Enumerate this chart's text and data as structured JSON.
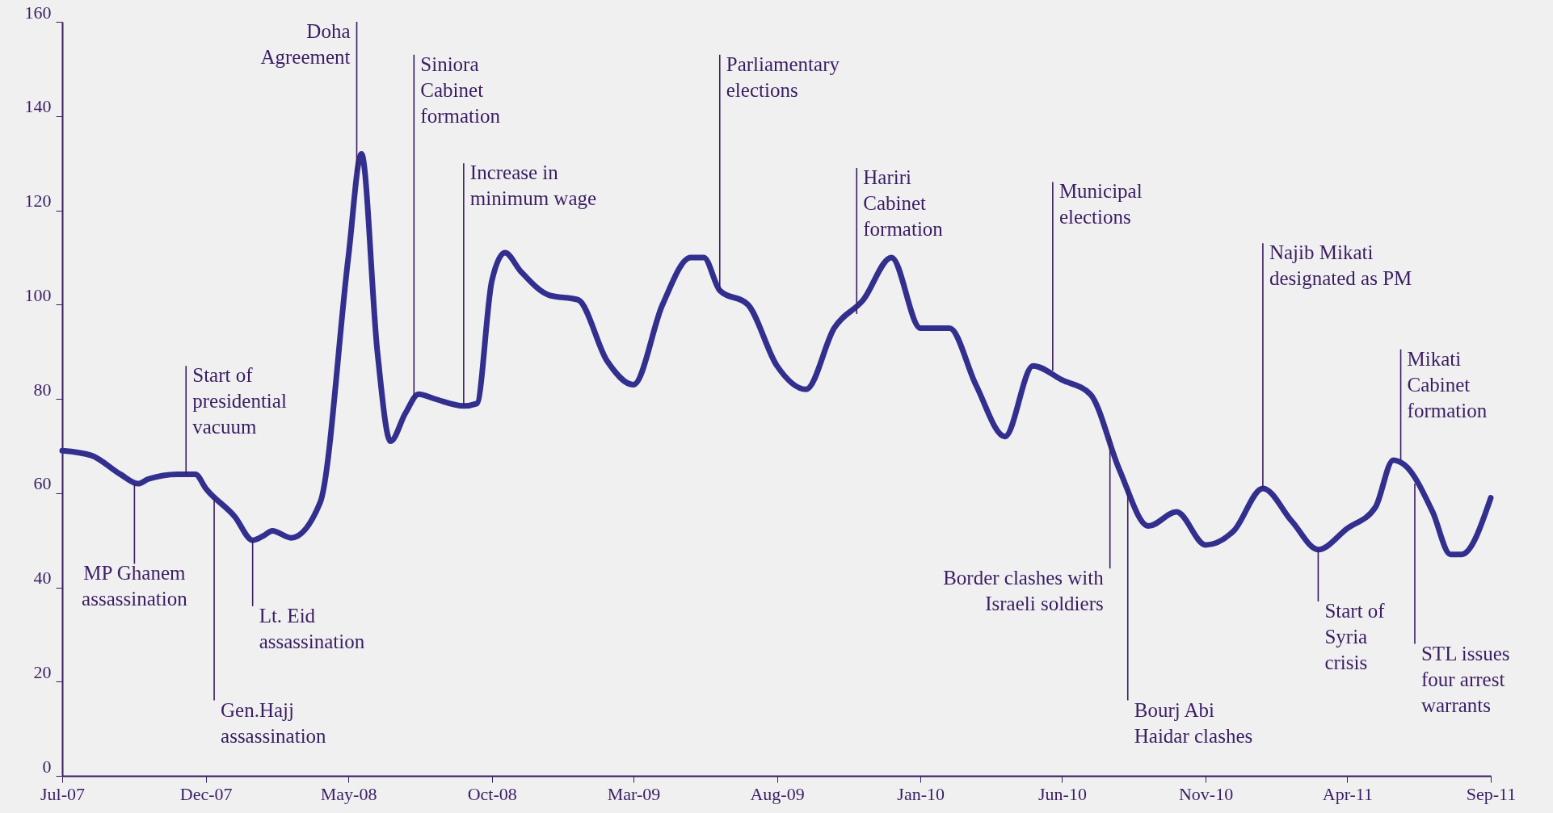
{
  "chart_data": {
    "type": "line",
    "x": [
      "2007-07",
      "2007-08",
      "2007-09",
      "2007-09-20",
      "2007-10",
      "2007-11",
      "2007-11-20",
      "2007-12",
      "2008-01",
      "2008-01-20",
      "2008-02",
      "2008-02-10",
      "2008-03",
      "2008-04",
      "2008-05",
      "2008-05-15",
      "2008-06",
      "2008-06-15",
      "2008-07",
      "2008-07-15",
      "2008-08",
      "2008-09",
      "2008-09-15",
      "2008-10",
      "2008-10-15",
      "2008-11",
      "2008-12",
      "2009-01",
      "2009-02",
      "2009-03",
      "2009-04",
      "2009-05",
      "2009-05-15",
      "2009-06",
      "2009-07",
      "2009-08",
      "2009-09",
      "2009-10",
      "2009-11",
      "2009-12",
      "2010-01",
      "2010-02",
      "2010-03",
      "2010-04",
      "2010-05",
      "2010-06",
      "2010-07",
      "2010-08",
      "2010-09",
      "2010-10",
      "2010-11",
      "2010-12",
      "2011-01",
      "2011-02",
      "2011-03",
      "2011-04",
      "2011-05",
      "2011-05-20",
      "2011-06",
      "2011-07",
      "2011-07-20",
      "2011-08",
      "2011-09"
    ],
    "series": [
      {
        "color": "#322f8f",
        "values": [
          69,
          68,
          64,
          62,
          63,
          64,
          64,
          61,
          55,
          50,
          51,
          52,
          50.5,
          58,
          110,
          132,
          90,
          71,
          77,
          81,
          80,
          78.5,
          79,
          105,
          111,
          107,
          102,
          101,
          88,
          83,
          100,
          110,
          110,
          103,
          100,
          87,
          82,
          95,
          101,
          110,
          95,
          95,
          83,
          72,
          87,
          84,
          81,
          65,
          53,
          56,
          49,
          52,
          61,
          54,
          48,
          52.5,
          57,
          67,
          66,
          56,
          47,
          47,
          59
        ]
      }
    ],
    "xlim": [
      "2007-07",
      "2011-09"
    ],
    "xticks": [
      {
        "value": "2007-07",
        "label": "Jul-07"
      },
      {
        "value": "2007-12",
        "label": "Dec-07"
      },
      {
        "value": "2008-05",
        "label": "May-08"
      },
      {
        "value": "2008-10",
        "label": "Oct-08"
      },
      {
        "value": "2009-03",
        "label": "Mar-09"
      },
      {
        "value": "2009-08",
        "label": "Aug-09"
      },
      {
        "value": "2010-01",
        "label": "Jan-10"
      },
      {
        "value": "2010-06",
        "label": "Jun-10"
      },
      {
        "value": "2010-11",
        "label": "Nov-10"
      },
      {
        "value": "2011-04",
        "label": "Apr-11"
      },
      {
        "value": "2011-09",
        "label": "Sep-11"
      }
    ],
    "ylim": [
      0,
      160
    ],
    "yticks": [
      0,
      20,
      40,
      60,
      80,
      100,
      120,
      140,
      160
    ],
    "grid": false,
    "marker": "none",
    "line_style": "solid",
    "annotations": [
      {
        "text": "Start of\npresidential\nvacuum",
        "x": "2007-11-10",
        "y": 64
      },
      {
        "text": "MP Ghanem\nassassination",
        "x": "2007-09-16",
        "y": 62
      },
      {
        "text": "Gen.Hajj\nassassination",
        "x": "2007-12-10",
        "y": 59
      },
      {
        "text": "Lt. Eid\nassassination",
        "x": "2008-01-20",
        "y": 50
      },
      {
        "text": "Doha\nAgreement",
        "x": "2008-05-10",
        "y": 128
      },
      {
        "text": "Siniora\nCabinet\nformation",
        "x": "2008-07-10",
        "y": 80
      },
      {
        "text": "Increase in\nminimum wage",
        "x": "2008-09-01",
        "y": 78.5
      },
      {
        "text": "Parliamentary\nelections",
        "x": "2009-06-01",
        "y": 103
      },
      {
        "text": "Hariri\nCabinet\nformation",
        "x": "2009-10-25",
        "y": 98
      },
      {
        "text": "Municipal\nelections",
        "x": "2010-05-22",
        "y": 86
      },
      {
        "text": "Border clashes with\nIsraeli soldiers",
        "x": "2010-07-22",
        "y": 72
      },
      {
        "text": "Bourj Abi\nHaidar clashes",
        "x": "2010-08-10",
        "y": 61
      },
      {
        "text": "Najib Mikati\ndesignated as PM",
        "x": "2011-01-01",
        "y": 61
      },
      {
        "text": "Start of\nSyria\ncrisis",
        "x": "2011-03-01",
        "y": 48
      },
      {
        "text": "Mikati\nCabinet\nformation",
        "x": "2011-05-28",
        "y": 67
      },
      {
        "text": "STL issues\nfour arrest\nwarrants",
        "x": "2011-06-12",
        "y": 62
      }
    ]
  }
}
